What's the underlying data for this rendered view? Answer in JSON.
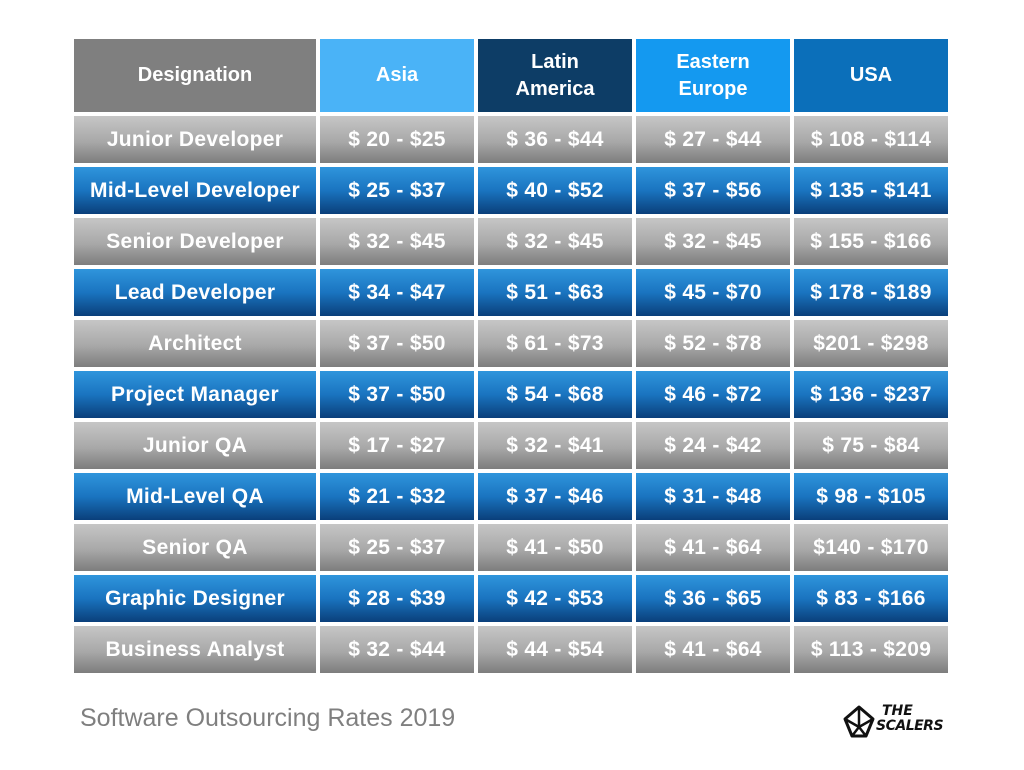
{
  "chart_data": {
    "type": "table",
    "columns": [
      "Designation",
      "Asia",
      "Latin\nAmerica",
      "Eastern\nEurope",
      "USA"
    ],
    "rows": [
      [
        "Junior Developer",
        "$ 20 - $25",
        "$ 36 - $44",
        "$ 27 - $44",
        "$ 108 - $114"
      ],
      [
        "Mid-Level Developer",
        "$ 25 - $37",
        "$ 40 - $52",
        "$ 37 - $56",
        "$ 135 - $141"
      ],
      [
        "Senior Developer",
        "$ 32 - $45",
        "$ 32 - $45",
        "$ 32 - $45",
        "$ 155 - $166"
      ],
      [
        "Lead Developer",
        "$ 34 - $47",
        "$ 51 - $63",
        "$ 45 - $70",
        "$ 178 - $189"
      ],
      [
        "Architect",
        "$ 37 - $50",
        "$ 61 - $73",
        "$ 52 - $78",
        "$201 - $298"
      ],
      [
        "Project Manager",
        "$ 37 - $50",
        "$ 54 - $68",
        "$ 46 - $72",
        "$ 136 - $237"
      ],
      [
        "Junior QA",
        "$ 17 - $27",
        "$ 32 - $41",
        "$ 24 - $42",
        "$ 75 - $84"
      ],
      [
        "Mid-Level QA",
        "$ 21 - $32",
        "$ 37 - $46",
        "$ 31 - $48",
        "$ 98 - $105"
      ],
      [
        "Senior QA",
        "$ 25 - $37",
        "$ 41 - $50",
        "$ 41 - $64",
        "$140 - $170"
      ],
      [
        "Graphic Designer",
        "$ 28 - $39",
        "$ 42 - $53",
        "$ 36 - $65",
        "$ 83 - $166"
      ],
      [
        "Business Analyst",
        "$ 32 - $44",
        "$ 44 - $54",
        "$ 41 - $64",
        "$ 113 - $209"
      ]
    ],
    "title": "Software Outsourcing Rates 2019",
    "header_colors": [
      "#7f7f7f",
      "#4ab3f7",
      "#0d3d66",
      "#1499f0",
      "#0b6fba"
    ],
    "row_colors": [
      "#a8a8a8",
      "#1a74c0"
    ]
  },
  "footer": {
    "title": "Software Outsourcing Rates 2019"
  },
  "logo": {
    "line1": "THE",
    "line2": "SCALERS",
    "icon": "diamond-crown-icon"
  }
}
